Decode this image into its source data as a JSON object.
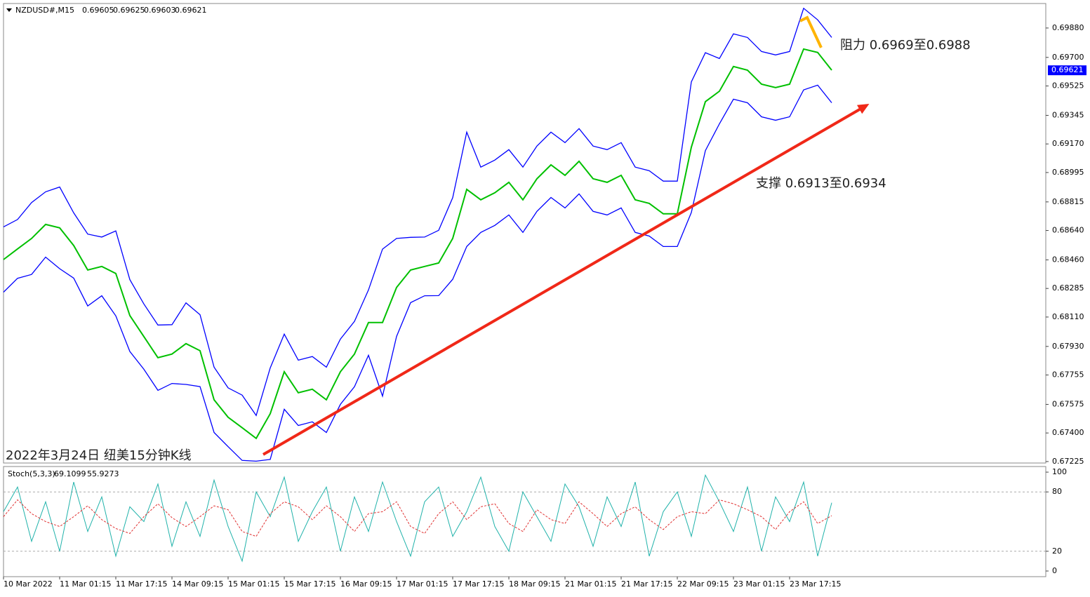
{
  "chart_data": [
    {
      "type": "line",
      "title": "NZDUSD#,M15",
      "ohlc_values": [
        0.69605,
        0.69625,
        0.69603,
        0.69621
      ],
      "last_price": 0.69621,
      "annotations": [
        "阻力 0.6969至0.6988",
        "支撑 0.6913至0.6934",
        "2022年3月24日 纽美15分钟K线"
      ],
      "xlim": [
        0,
        1188
      ],
      "xticks": [
        {
          "value": 0,
          "label": "10 Mar 2022"
        },
        {
          "value": 64,
          "label": "11 Mar 01:15"
        },
        {
          "value": 128,
          "label": "11 Mar 17:15"
        },
        {
          "value": 192,
          "label": "14 Mar 09:15"
        },
        {
          "value": 256,
          "label": "15 Mar 01:15"
        },
        {
          "value": 320,
          "label": "15 Mar 17:15"
        },
        {
          "value": 384,
          "label": "16 Mar 09:15"
        },
        {
          "value": 448,
          "label": "17 Mar 01:15"
        },
        {
          "value": 512,
          "label": "17 Mar 17:15"
        },
        {
          "value": 576,
          "label": "18 Mar 09:15"
        },
        {
          "value": 640,
          "label": "21 Mar 01:15"
        },
        {
          "value": 704,
          "label": "21 Mar 17:15"
        },
        {
          "value": 768,
          "label": "22 Mar 09:15"
        },
        {
          "value": 832,
          "label": "23 Mar 01:15"
        },
        {
          "value": 896,
          "label": "23 Mar 17:15"
        }
      ],
      "ylim": [
        0.67216,
        0.7003
      ],
      "yticks": [
        0.67225,
        {
          "value": 0.674,
          "label": "0.67400"
        },
        0.67575,
        0.67755,
        {
          "value": 0.6793,
          "label": "0.67930"
        },
        {
          "value": 0.6811,
          "label": "0.68110"
        },
        0.68285,
        {
          "value": 0.6846,
          "label": "0.68460"
        },
        {
          "value": 0.6864,
          "label": "0.68640"
        },
        0.68815,
        0.68995,
        {
          "value": 0.6917,
          "label": "0.69170"
        },
        0.69345,
        0.69525,
        {
          "value": 0.697,
          "label": "0.69700"
        },
        {
          "value": 0.6988,
          "label": "0.69880"
        }
      ],
      "x": [
        0,
        16,
        32,
        48,
        64,
        80,
        96,
        112,
        128,
        144,
        160,
        176,
        192,
        208,
        224,
        240,
        256,
        272,
        288,
        304,
        320,
        336,
        352,
        368,
        384,
        400,
        416,
        432,
        448,
        464,
        480,
        496,
        512,
        528,
        544,
        560,
        576,
        592,
        608,
        624,
        640,
        656,
        672,
        688,
        704,
        720,
        736,
        752,
        768,
        784,
        800,
        816,
        832,
        848,
        864,
        880,
        896,
        912,
        928,
        944
      ],
      "series": [
        {
          "color": "#00c000",
          "values": [
            0.68462,
            0.68527,
            0.68591,
            0.68677,
            0.68656,
            0.68548,
            0.68398,
            0.6842,
            0.68377,
            0.68119,
            0.6799,
            0.67861,
            0.67883,
            0.67947,
            0.67904,
            0.67603,
            0.67496,
            0.67432,
            0.67367,
            0.67518,
            0.67775,
            0.67646,
            0.67668,
            0.67603,
            0.67775,
            0.67883,
            0.68076,
            0.68076,
            0.68291,
            0.68398,
            0.6842,
            0.68441,
            0.68591,
            0.68892,
            0.68828,
            0.68871,
            0.68935,
            0.68828,
            0.68957,
            0.69042,
            0.68978,
            0.69064,
            0.68957,
            0.68935,
            0.68978,
            0.68828,
            0.68806,
            0.68742,
            0.68742,
            0.6915,
            0.69429,
            0.69493,
            0.69644,
            0.69622,
            0.69536,
            0.69515,
            0.69536,
            0.69751,
            0.6973,
            0.69622
          ]
        },
        {
          "color": "#0000ff",
          "values": [
            0.68662,
            0.68707,
            0.68811,
            0.68877,
            0.68906,
            0.68748,
            0.68618,
            0.686,
            0.68637,
            0.68339,
            0.6819,
            0.68061,
            0.68063,
            0.68197,
            0.68124,
            0.67803,
            0.67676,
            0.67632,
            0.67507,
            0.67798,
            0.68005,
            0.67846,
            0.67868,
            0.67803,
            0.67975,
            0.68083,
            0.68276,
            0.68526,
            0.68591,
            0.68598,
            0.686,
            0.68641,
            0.68841,
            0.69242,
            0.69028,
            0.69071,
            0.69135,
            0.69028,
            0.69157,
            0.69242,
            0.69178,
            0.69264,
            0.69157,
            0.69135,
            0.69178,
            0.69028,
            0.69006,
            0.68942,
            0.68942,
            0.6955,
            0.69729,
            0.69693,
            0.69844,
            0.69822,
            0.69736,
            0.69715,
            0.69736,
            0.70001,
            0.6993,
            0.69822
          ]
        },
        {
          "color": "#0000ff",
          "values": [
            0.68262,
            0.68347,
            0.68371,
            0.68477,
            0.68406,
            0.68348,
            0.68178,
            0.6824,
            0.68117,
            0.67899,
            0.6779,
            0.67661,
            0.67703,
            0.67697,
            0.67684,
            0.67403,
            0.67316,
            0.67232,
            0.67227,
            0.67238,
            0.67545,
            0.67446,
            0.67468,
            0.67403,
            0.67575,
            0.67683,
            0.67876,
            0.67626,
            0.67991,
            0.68198,
            0.6824,
            0.68241,
            0.68341,
            0.68542,
            0.68628,
            0.68671,
            0.68735,
            0.68628,
            0.68757,
            0.68842,
            0.68778,
            0.68864,
            0.68757,
            0.68735,
            0.68778,
            0.68628,
            0.68606,
            0.68542,
            0.68542,
            0.6875,
            0.69129,
            0.69293,
            0.69444,
            0.69422,
            0.69336,
            0.69315,
            0.69336,
            0.69501,
            0.6953,
            0.69422
          ]
        }
      ],
      "trendline": {
        "color": "#f02818",
        "x": [
          296,
          984
        ],
        "y": [
          0.67268,
          0.69407
        ]
      },
      "marker": {
        "color": "#ffb400",
        "x": [
          908,
          916,
          932
        ],
        "y": [
          0.69923,
          0.69944,
          0.6976
        ]
      }
    },
    {
      "type": "line",
      "title": "Stoch(5,3,3)",
      "readings": [
        69.1099,
        55.9273
      ],
      "ylim": [
        -5.7,
        105.7
      ],
      "yticks": [
        0,
        20,
        80,
        100
      ],
      "levels": [
        20,
        80
      ],
      "x": [
        0,
        16,
        32,
        48,
        64,
        80,
        96,
        112,
        128,
        144,
        160,
        176,
        192,
        208,
        224,
        240,
        256,
        272,
        288,
        304,
        320,
        336,
        352,
        368,
        384,
        400,
        416,
        432,
        448,
        464,
        480,
        496,
        512,
        528,
        544,
        560,
        576,
        592,
        608,
        624,
        640,
        656,
        672,
        688,
        704,
        720,
        736,
        752,
        768,
        784,
        800,
        816,
        832,
        848,
        864,
        880,
        896,
        912,
        928,
        944
      ],
      "series": [
        {
          "color": "#20b2aa",
          "values": [
            60,
            85,
            30,
            70,
            20,
            90,
            40,
            75,
            15,
            65,
            50,
            88,
            25,
            70,
            35,
            92,
            45,
            10,
            80,
            55,
            95,
            30,
            60,
            85,
            20,
            75,
            40,
            90,
            50,
            15,
            70,
            85,
            35,
            60,
            95,
            45,
            20,
            80,
            55,
            30,
            88,
            65,
            25,
            75,
            45,
            90,
            15,
            60,
            80,
            35,
            97,
            70,
            40,
            85,
            20,
            75,
            50,
            90,
            15,
            69.1099
          ]
        },
        {
          "color": "#e03030",
          "values": [
            55,
            72,
            58,
            50,
            45,
            55,
            66,
            52,
            43,
            38,
            55,
            68,
            54,
            45,
            55,
            66,
            62,
            40,
            35,
            58,
            70,
            65,
            52,
            66,
            55,
            40,
            58,
            60,
            70,
            45,
            38,
            58,
            70,
            52,
            65,
            68,
            48,
            40,
            62,
            52,
            48,
            70,
            58,
            45,
            58,
            65,
            52,
            42,
            55,
            60,
            58,
            72,
            68,
            62,
            55,
            42,
            60,
            70,
            48,
            55.9273
          ]
        }
      ]
    }
  ]
}
